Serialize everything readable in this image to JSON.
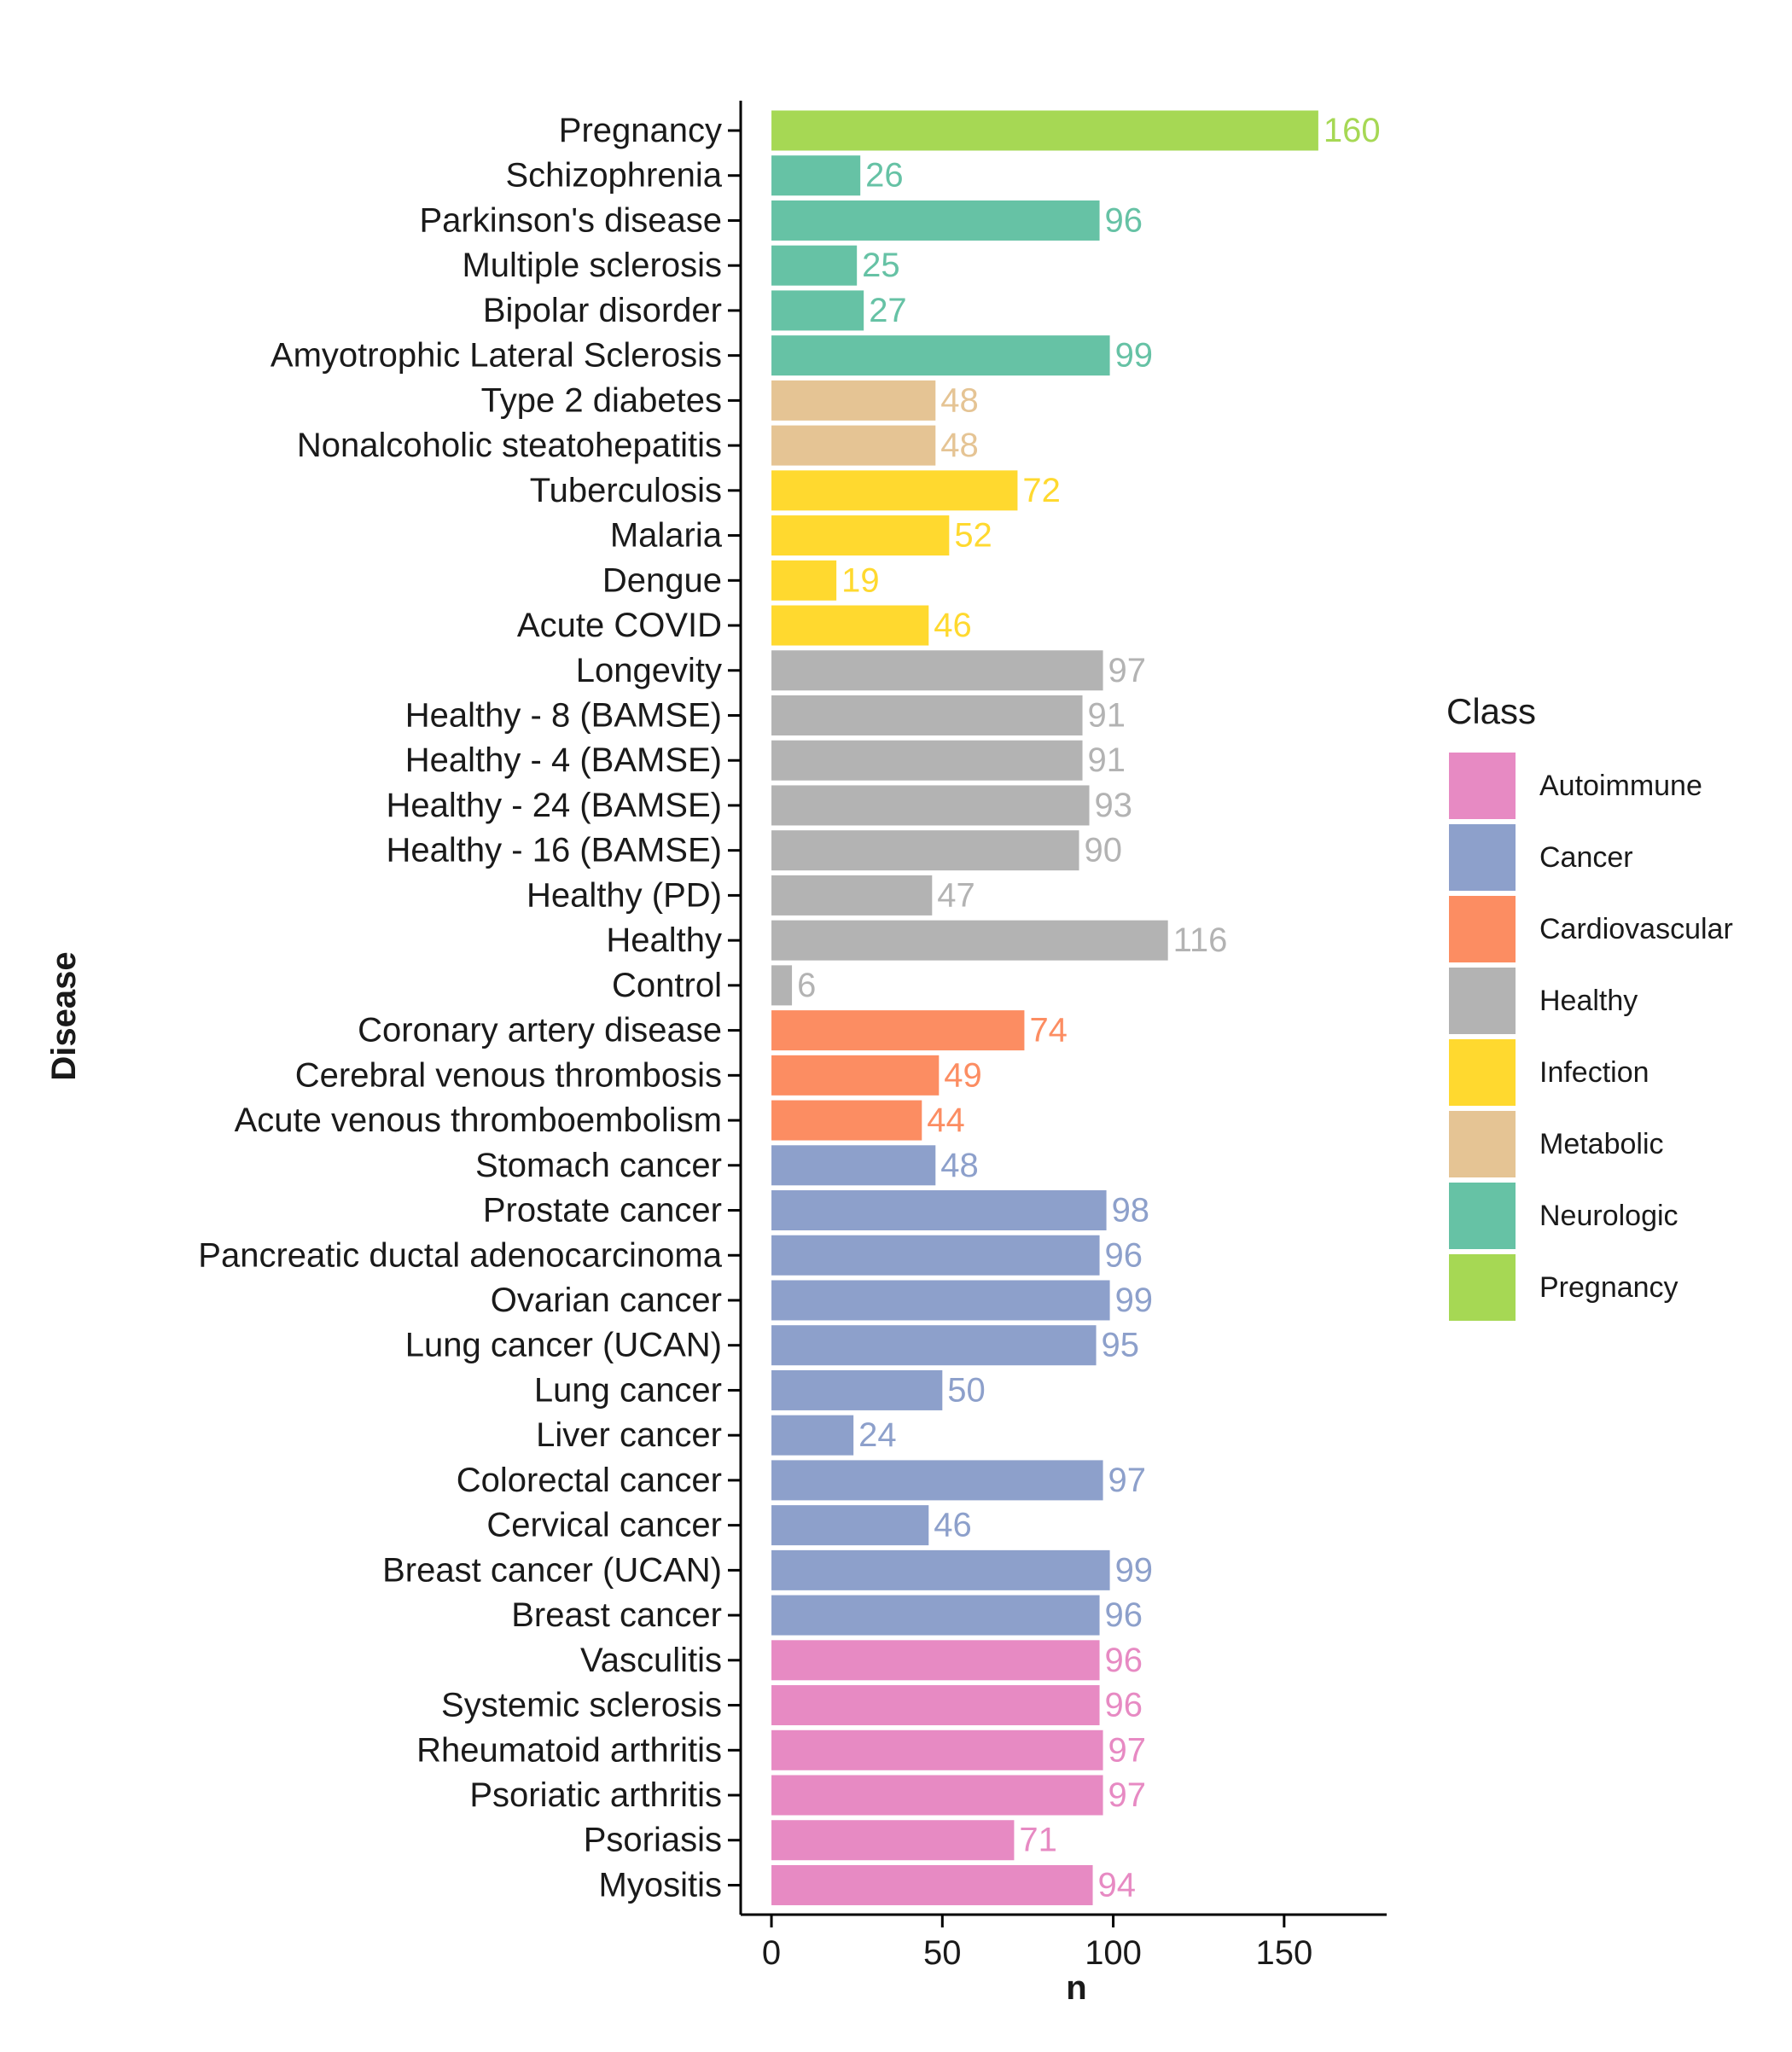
{
  "chart_data": {
    "type": "bar",
    "orientation": "horizontal",
    "xlabel": "n",
    "ylabel": "Disease",
    "xlim": [
      -9,
      180
    ],
    "xticks": [
      "0",
      "50",
      "100",
      "150"
    ],
    "legend": {
      "title": "Class",
      "placement": "right",
      "entries": [
        {
          "name": "Autoimmune",
          "color": "#E78AC3"
        },
        {
          "name": "Cancer",
          "color": "#8DA0CB"
        },
        {
          "name": "Cardiovascular",
          "color": "#FC8D62"
        },
        {
          "name": "Healthy",
          "color": "#B3B3B3"
        },
        {
          "name": "Infection",
          "color": "#FFD92F"
        },
        {
          "name": "Metabolic",
          "color": "#E5C494"
        },
        {
          "name": "Neurologic",
          "color": "#66C2A5"
        },
        {
          "name": "Pregnancy",
          "color": "#A6D854"
        }
      ]
    },
    "bars": [
      {
        "label": "Pregnancy",
        "value": 160,
        "value_label": "160",
        "class": "Pregnancy"
      },
      {
        "label": "Schizophrenia",
        "value": 26,
        "value_label": "26",
        "class": "Neurologic"
      },
      {
        "label": "Parkinson's disease",
        "value": 96,
        "value_label": "96",
        "class": "Neurologic"
      },
      {
        "label": "Multiple sclerosis",
        "value": 25,
        "value_label": "25",
        "class": "Neurologic"
      },
      {
        "label": "Bipolar disorder",
        "value": 27,
        "value_label": "27",
        "class": "Neurologic"
      },
      {
        "label": "Amyotrophic Lateral Sclerosis",
        "value": 99,
        "value_label": "99",
        "class": "Neurologic"
      },
      {
        "label": "Type 2 diabetes",
        "value": 48,
        "value_label": "48",
        "class": "Metabolic"
      },
      {
        "label": "Nonalcoholic steatohepatitis",
        "value": 48,
        "value_label": "48",
        "class": "Metabolic"
      },
      {
        "label": "Tuberculosis",
        "value": 72,
        "value_label": "72",
        "class": "Infection"
      },
      {
        "label": "Malaria",
        "value": 52,
        "value_label": "52",
        "class": "Infection"
      },
      {
        "label": "Dengue",
        "value": 19,
        "value_label": "19",
        "class": "Infection"
      },
      {
        "label": "Acute COVID",
        "value": 46,
        "value_label": "46",
        "class": "Infection"
      },
      {
        "label": "Longevity",
        "value": 97,
        "value_label": "97",
        "class": "Healthy"
      },
      {
        "label": "Healthy - 8 (BAMSE)",
        "value": 91,
        "value_label": "91",
        "class": "Healthy"
      },
      {
        "label": "Healthy - 4 (BAMSE)",
        "value": 91,
        "value_label": "91",
        "class": "Healthy"
      },
      {
        "label": "Healthy - 24 (BAMSE)",
        "value": 93,
        "value_label": "93",
        "class": "Healthy"
      },
      {
        "label": "Healthy - 16 (BAMSE)",
        "value": 90,
        "value_label": "90",
        "class": "Healthy"
      },
      {
        "label": "Healthy (PD)",
        "value": 47,
        "value_label": "47",
        "class": "Healthy"
      },
      {
        "label": "Healthy",
        "value": 116,
        "value_label": "116",
        "class": "Healthy"
      },
      {
        "label": "Control",
        "value": 6,
        "value_label": "6",
        "class": "Healthy"
      },
      {
        "label": "Coronary artery disease",
        "value": 74,
        "value_label": "74",
        "class": "Cardiovascular"
      },
      {
        "label": "Cerebral venous thrombosis",
        "value": 49,
        "value_label": "49",
        "class": "Cardiovascular"
      },
      {
        "label": "Acute venous thromboembolism",
        "value": 44,
        "value_label": "44",
        "class": "Cardiovascular"
      },
      {
        "label": "Stomach cancer",
        "value": 48,
        "value_label": "48",
        "class": "Cancer"
      },
      {
        "label": "Prostate cancer",
        "value": 98,
        "value_label": "98",
        "class": "Cancer"
      },
      {
        "label": "Pancreatic ductal adenocarcinoma",
        "value": 96,
        "value_label": "96",
        "class": "Cancer"
      },
      {
        "label": "Ovarian cancer",
        "value": 99,
        "value_label": "99",
        "class": "Cancer"
      },
      {
        "label": "Lung cancer (UCAN)",
        "value": 95,
        "value_label": "95",
        "class": "Cancer"
      },
      {
        "label": "Lung cancer",
        "value": 50,
        "value_label": "50",
        "class": "Cancer"
      },
      {
        "label": "Liver cancer",
        "value": 24,
        "value_label": "24",
        "class": "Cancer"
      },
      {
        "label": "Colorectal cancer",
        "value": 97,
        "value_label": "97",
        "class": "Cancer"
      },
      {
        "label": "Cervical cancer",
        "value": 46,
        "value_label": "46",
        "class": "Cancer"
      },
      {
        "label": "Breast cancer (UCAN)",
        "value": 99,
        "value_label": "99",
        "class": "Cancer"
      },
      {
        "label": "Breast cancer",
        "value": 96,
        "value_label": "96",
        "class": "Cancer"
      },
      {
        "label": "Vasculitis",
        "value": 96,
        "value_label": "96",
        "class": "Autoimmune"
      },
      {
        "label": "Systemic sclerosis",
        "value": 96,
        "value_label": "96",
        "class": "Autoimmune"
      },
      {
        "label": "Rheumatoid arthritis",
        "value": 97,
        "value_label": "97",
        "class": "Autoimmune"
      },
      {
        "label": "Psoriatic arthritis",
        "value": 97,
        "value_label": "97",
        "class": "Autoimmune"
      },
      {
        "label": "Psoriasis",
        "value": 71,
        "value_label": "71",
        "class": "Autoimmune"
      },
      {
        "label": "Myositis",
        "value": 94,
        "value_label": "94",
        "class": "Autoimmune"
      }
    ]
  }
}
